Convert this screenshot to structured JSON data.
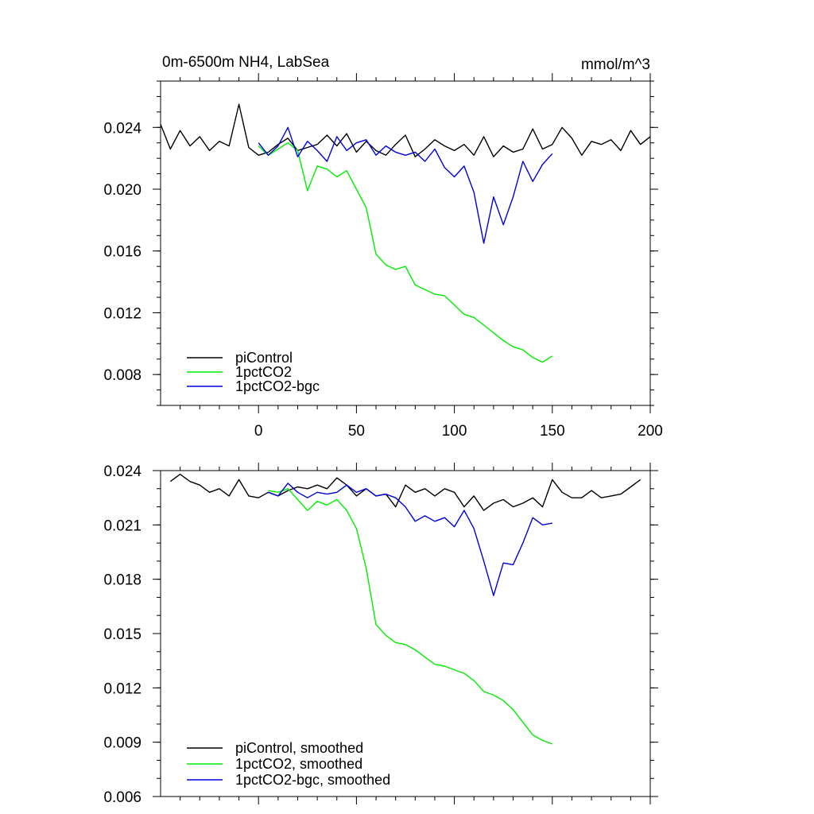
{
  "chart_data": [
    {
      "type": "line",
      "title": "0m-6500m NH4, LabSea",
      "units": "mmol/m^3",
      "xlim": [
        -50,
        200
      ],
      "ylim": [
        0.006,
        0.027
      ],
      "xticks": [
        0,
        50,
        100,
        150,
        200
      ],
      "xtick_labels": [
        "0",
        "50",
        "100",
        "150",
        "200"
      ],
      "yticks": [
        0.008,
        0.012,
        0.016,
        0.02,
        0.024
      ],
      "ytick_labels": [
        "0.008",
        "0.012",
        "0.016",
        "0.020",
        "0.024"
      ],
      "legend_position": "bottom-left",
      "series": [
        {
          "name": "piControl",
          "color": "#000000",
          "x": [
            -50,
            -45,
            -40,
            -35,
            -30,
            -25,
            -20,
            -15,
            -10,
            -5,
            0,
            5,
            10,
            15,
            20,
            25,
            30,
            35,
            40,
            45,
            50,
            55,
            60,
            65,
            70,
            75,
            80,
            85,
            90,
            95,
            100,
            105,
            110,
            115,
            120,
            125,
            130,
            135,
            140,
            145,
            150,
            155,
            160,
            165,
            170,
            175,
            180,
            185,
            190,
            195,
            200
          ],
          "values": [
            0.0242,
            0.0226,
            0.0238,
            0.0228,
            0.0234,
            0.0225,
            0.0231,
            0.0228,
            0.0255,
            0.0227,
            0.0222,
            0.0224,
            0.0229,
            0.0233,
            0.0225,
            0.0227,
            0.0229,
            0.0235,
            0.0228,
            0.0236,
            0.0224,
            0.0231,
            0.0225,
            0.0222,
            0.0229,
            0.0235,
            0.0221,
            0.0226,
            0.0232,
            0.0228,
            0.0225,
            0.0229,
            0.0222,
            0.0234,
            0.0221,
            0.0228,
            0.0224,
            0.0226,
            0.0239,
            0.0226,
            0.0229,
            0.024,
            0.0233,
            0.0222,
            0.0231,
            0.0229,
            0.0232,
            0.0225,
            0.0238,
            0.0229,
            0.0234
          ]
        },
        {
          "name": "1pctCO2",
          "color": "#00ee00",
          "x": [
            0,
            5,
            10,
            15,
            20,
            25,
            30,
            35,
            40,
            45,
            50,
            55,
            60,
            65,
            70,
            75,
            80,
            85,
            90,
            95,
            100,
            105,
            110,
            115,
            120,
            125,
            130,
            135,
            140,
            145,
            150
          ],
          "values": [
            0.0228,
            0.0222,
            0.0226,
            0.023,
            0.0225,
            0.0199,
            0.0215,
            0.0213,
            0.0208,
            0.0212,
            0.02,
            0.0188,
            0.0158,
            0.0151,
            0.0148,
            0.015,
            0.0138,
            0.0135,
            0.0132,
            0.0131,
            0.0125,
            0.0119,
            0.0117,
            0.0112,
            0.0107,
            0.0102,
            0.0098,
            0.0096,
            0.0091,
            0.0088,
            0.0092
          ]
        },
        {
          "name": "1pctCO2-bgc",
          "color": "#0000dd",
          "x": [
            0,
            5,
            10,
            15,
            20,
            25,
            30,
            35,
            40,
            45,
            50,
            55,
            60,
            65,
            70,
            75,
            80,
            85,
            90,
            95,
            100,
            105,
            110,
            115,
            120,
            125,
            130,
            135,
            140,
            145,
            150
          ],
          "values": [
            0.023,
            0.0222,
            0.0228,
            0.024,
            0.0221,
            0.0231,
            0.0225,
            0.0218,
            0.0234,
            0.0225,
            0.023,
            0.0232,
            0.0222,
            0.0228,
            0.0224,
            0.0222,
            0.0224,
            0.0218,
            0.0226,
            0.0214,
            0.0208,
            0.0215,
            0.0198,
            0.0165,
            0.0195,
            0.0177,
            0.0195,
            0.0218,
            0.0205,
            0.0216,
            0.0223
          ]
        }
      ]
    },
    {
      "type": "line",
      "xlim": [
        -50,
        200
      ],
      "ylim": [
        0.006,
        0.024
      ],
      "yticks": [
        0.006,
        0.009,
        0.012,
        0.015,
        0.018,
        0.021,
        0.024
      ],
      "ytick_labels": [
        "0.006",
        "0.009",
        "0.012",
        "0.015",
        "0.018",
        "0.021",
        "0.024"
      ],
      "xticks": [
        0,
        50,
        100,
        150,
        200
      ],
      "legend_position": "bottom-left",
      "series": [
        {
          "name": "piControl, smoothed",
          "color": "#000000",
          "x": [
            -45,
            -40,
            -35,
            -30,
            -25,
            -20,
            -15,
            -10,
            -5,
            0,
            5,
            10,
            15,
            20,
            25,
            30,
            35,
            40,
            45,
            50,
            55,
            60,
            65,
            70,
            75,
            80,
            85,
            90,
            95,
            100,
            105,
            110,
            115,
            120,
            125,
            130,
            135,
            140,
            145,
            150,
            155,
            160,
            165,
            170,
            175,
            180,
            185,
            190,
            195
          ],
          "values": [
            0.0234,
            0.0238,
            0.0234,
            0.0232,
            0.0228,
            0.023,
            0.0226,
            0.0235,
            0.0226,
            0.0225,
            0.0228,
            0.0226,
            0.0229,
            0.0231,
            0.023,
            0.0232,
            0.023,
            0.0236,
            0.0232,
            0.0226,
            0.023,
            0.0226,
            0.0227,
            0.022,
            0.0232,
            0.0228,
            0.023,
            0.0226,
            0.023,
            0.0228,
            0.022,
            0.0226,
            0.0218,
            0.0222,
            0.0224,
            0.022,
            0.0222,
            0.0225,
            0.022,
            0.0235,
            0.0228,
            0.0225,
            0.0225,
            0.0229,
            0.0225,
            0.0226,
            0.0227,
            0.0231,
            0.0235
          ]
        },
        {
          "name": "1pctCO2, smoothed",
          "color": "#00ee00",
          "x": [
            5,
            10,
            15,
            20,
            25,
            30,
            35,
            40,
            45,
            50,
            55,
            60,
            65,
            70,
            75,
            80,
            85,
            90,
            95,
            100,
            105,
            110,
            115,
            120,
            125,
            130,
            135,
            140,
            145,
            150
          ],
          "values": [
            0.0229,
            0.0228,
            0.023,
            0.0224,
            0.0218,
            0.0223,
            0.0221,
            0.0224,
            0.0218,
            0.0208,
            0.0186,
            0.0155,
            0.0149,
            0.0145,
            0.0144,
            0.0141,
            0.0137,
            0.0133,
            0.0132,
            0.013,
            0.0128,
            0.0124,
            0.0118,
            0.0116,
            0.0113,
            0.0108,
            0.0101,
            0.0094,
            0.0091,
            0.0089
          ]
        },
        {
          "name": "1pctCO2-bgc, smoothed",
          "color": "#0000dd",
          "x": [
            5,
            10,
            15,
            20,
            25,
            30,
            35,
            40,
            45,
            50,
            55,
            60,
            65,
            70,
            75,
            80,
            85,
            90,
            95,
            100,
            105,
            110,
            115,
            120,
            125,
            130,
            135,
            140,
            145,
            150
          ],
          "values": [
            0.0228,
            0.0226,
            0.0233,
            0.0228,
            0.0225,
            0.0228,
            0.0227,
            0.0228,
            0.0232,
            0.0228,
            0.023,
            0.0226,
            0.0227,
            0.0225,
            0.022,
            0.0212,
            0.0215,
            0.0212,
            0.0214,
            0.0209,
            0.0218,
            0.0208,
            0.019,
            0.0171,
            0.0189,
            0.0188,
            0.02,
            0.0214,
            0.021,
            0.0211
          ]
        }
      ]
    }
  ]
}
